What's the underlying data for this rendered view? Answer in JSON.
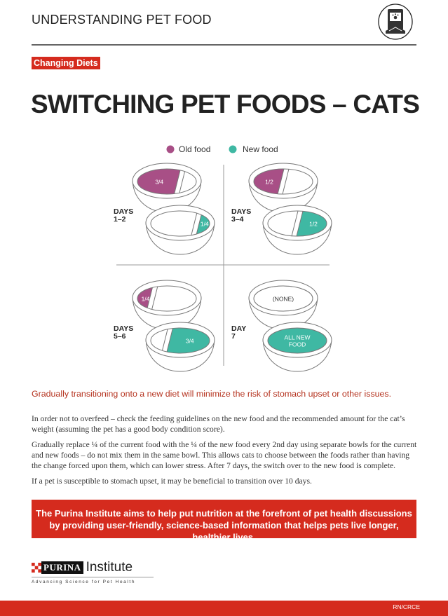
{
  "header": {
    "section": "UNDERSTANDING PET FOOD",
    "icon": "pet-food-bag-icon"
  },
  "badge": "Changing Diets",
  "title": "SWITCHING PET FOODS – CATS",
  "legend": {
    "old": "Old food",
    "new": "New food",
    "old_color": "#a84f86",
    "new_color": "#3fb8a3"
  },
  "stages": [
    {
      "label1": "DAYS",
      "label2": "1–2",
      "old": "3/4",
      "new": "1/4"
    },
    {
      "label1": "DAYS",
      "label2": "3–4",
      "old": "1/2",
      "new": "1/2"
    },
    {
      "label1": "DAYS",
      "label2": "5–6",
      "old": "1/4",
      "new": "3/4"
    },
    {
      "label1": "DAY",
      "label2": "7",
      "old": "(NONE)",
      "new_line1": "ALL NEW",
      "new_line2": "FOOD"
    }
  ],
  "subtitle": "Gradually transitioning onto a new diet will minimize the risk of stomach upset or other issues.",
  "paragraphs": [
    "In order not to overfeed – check the feeding guidelines on the new food and the recommended amount for the cat’s weight (assuming the pet has a good body condition score).",
    "Gradually replace ¼ of the current food with the ¼ of the new food every 2nd day using separate bowls for the current and new foods – do not mix them in the same bowl. This allows cats to choose between the foods rather than having the change forced upon them, which can lower stress. After 7 days, the switch over to the new food is complete.",
    "If a pet is susceptible to stomach upset, it may be beneficial to transition over 10 days."
  ],
  "callout": "The Purina Institute aims to help put nutrition at the forefront of pet health discussions by providing user-friendly, science-based information that helps pets live longer, healthier lives.",
  "logo": {
    "brand": "PURINA",
    "name": "Institute",
    "tagline": "Advancing Science for Pet Health"
  },
  "footer_code": "RN/CRCE"
}
